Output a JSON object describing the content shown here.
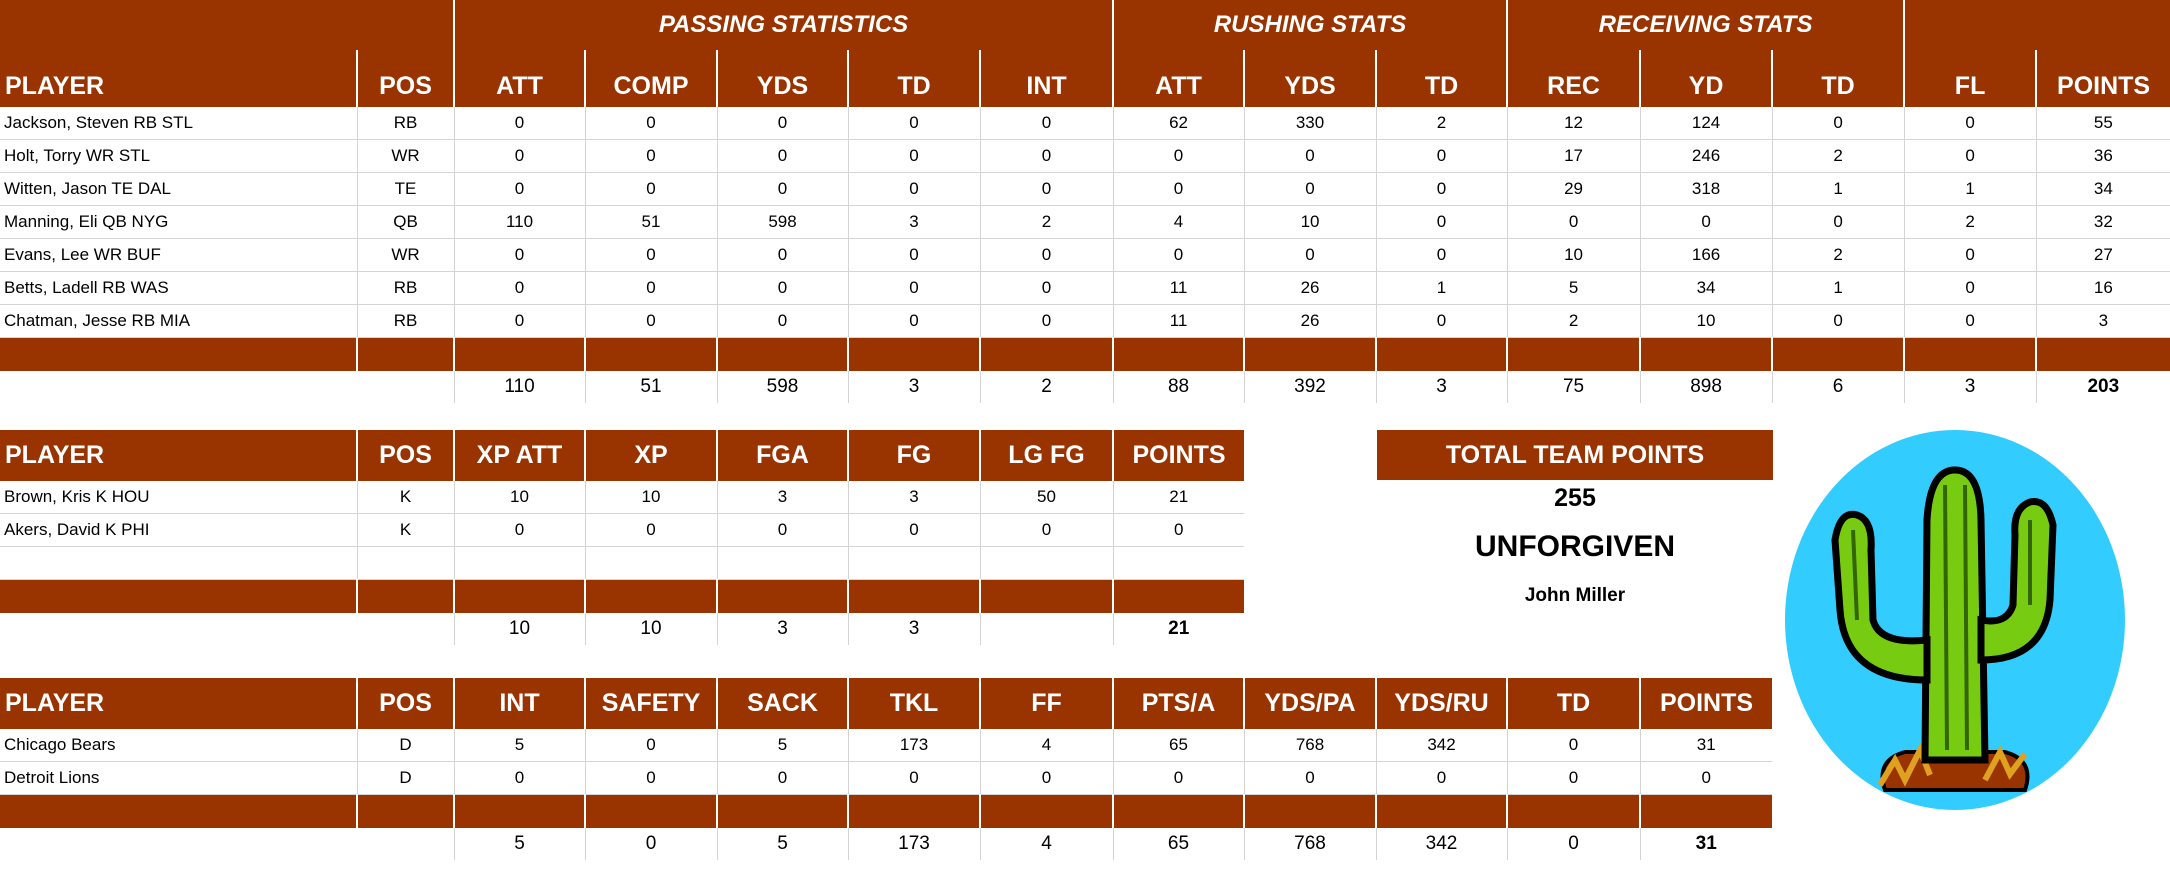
{
  "offense": {
    "groups": [
      "",
      "PASSING STATISTICS",
      "RUSHING STATS",
      "RECEIVING STATS",
      ""
    ],
    "headers": [
      "PLAYER",
      "POS",
      "ATT",
      "COMP",
      "YDS",
      "TD",
      "INT",
      "ATT",
      "YDS",
      "TD",
      "REC",
      "YD",
      "TD",
      "FL",
      "POINTS"
    ],
    "rows": [
      [
        "Jackson, Steven RB STL",
        "RB",
        "0",
        "0",
        "0",
        "0",
        "0",
        "62",
        "330",
        "2",
        "12",
        "124",
        "0",
        "0",
        "55"
      ],
      [
        "Holt, Torry WR STL",
        "WR",
        "0",
        "0",
        "0",
        "0",
        "0",
        "0",
        "0",
        "0",
        "17",
        "246",
        "2",
        "0",
        "36"
      ],
      [
        "Witten, Jason TE DAL",
        "TE",
        "0",
        "0",
        "0",
        "0",
        "0",
        "0",
        "0",
        "0",
        "29",
        "318",
        "1",
        "1",
        "34"
      ],
      [
        "Manning, Eli QB NYG",
        "QB",
        "110",
        "51",
        "598",
        "3",
        "2",
        "4",
        "10",
        "0",
        "0",
        "0",
        "0",
        "2",
        "32"
      ],
      [
        "Evans, Lee WR BUF",
        "WR",
        "0",
        "0",
        "0",
        "0",
        "0",
        "0",
        "0",
        "0",
        "10",
        "166",
        "2",
        "0",
        "27"
      ],
      [
        "Betts, Ladell RB WAS",
        "RB",
        "0",
        "0",
        "0",
        "0",
        "0",
        "11",
        "26",
        "1",
        "5",
        "34",
        "1",
        "0",
        "16"
      ],
      [
        "Chatman, Jesse RB MIA",
        "RB",
        "0",
        "0",
        "0",
        "0",
        "0",
        "11",
        "26",
        "0",
        "2",
        "10",
        "0",
        "0",
        "3"
      ]
    ],
    "totals": [
      "",
      "",
      "110",
      "51",
      "598",
      "3",
      "2",
      "88",
      "392",
      "3",
      "75",
      "898",
      "6",
      "3",
      "203"
    ]
  },
  "kickers": {
    "headers": [
      "PLAYER",
      "POS",
      "XP ATT",
      "XP",
      "FGA",
      "FG",
      "LG FG",
      "POINTS"
    ],
    "rows": [
      [
        "Brown, Kris K HOU",
        "K",
        "10",
        "10",
        "3",
        "3",
        "50",
        "21"
      ],
      [
        "Akers, David K PHI",
        "K",
        "0",
        "0",
        "0",
        "0",
        "0",
        "0"
      ],
      [
        "",
        "",
        "",
        "",
        "",
        "",
        "",
        ""
      ]
    ],
    "totals": [
      "",
      "",
      "10",
      "10",
      "3",
      "3",
      "",
      "21"
    ]
  },
  "defense": {
    "headers": [
      "PLAYER",
      "POS",
      "INT",
      "SAFETY",
      "SACK",
      "TKL",
      "FF",
      "PTS/A",
      "YDS/PA",
      "YDS/RU",
      "TD",
      "POINTS"
    ],
    "rows": [
      [
        "Chicago Bears",
        "D",
        "5",
        "0",
        "5",
        "173",
        "4",
        "65",
        "768",
        "342",
        "0",
        "31"
      ],
      [
        "Detroit Lions",
        "D",
        "0",
        "0",
        "0",
        "0",
        "0",
        "0",
        "0",
        "0",
        "0",
        "0"
      ]
    ],
    "totals": [
      "",
      "",
      "5",
      "0",
      "5",
      "173",
      "4",
      "65",
      "768",
      "342",
      "0",
      "31"
    ]
  },
  "team": {
    "total_label": "TOTAL TEAM POINTS",
    "total_points": "255",
    "name": "UNFORGIVEN",
    "owner": "John Miller"
  },
  "logo": {
    "icon": "cactus-icon",
    "circle_color": "#33ccff"
  },
  "colors": {
    "header_bg": "#993300",
    "header_text": "#ffffff"
  }
}
